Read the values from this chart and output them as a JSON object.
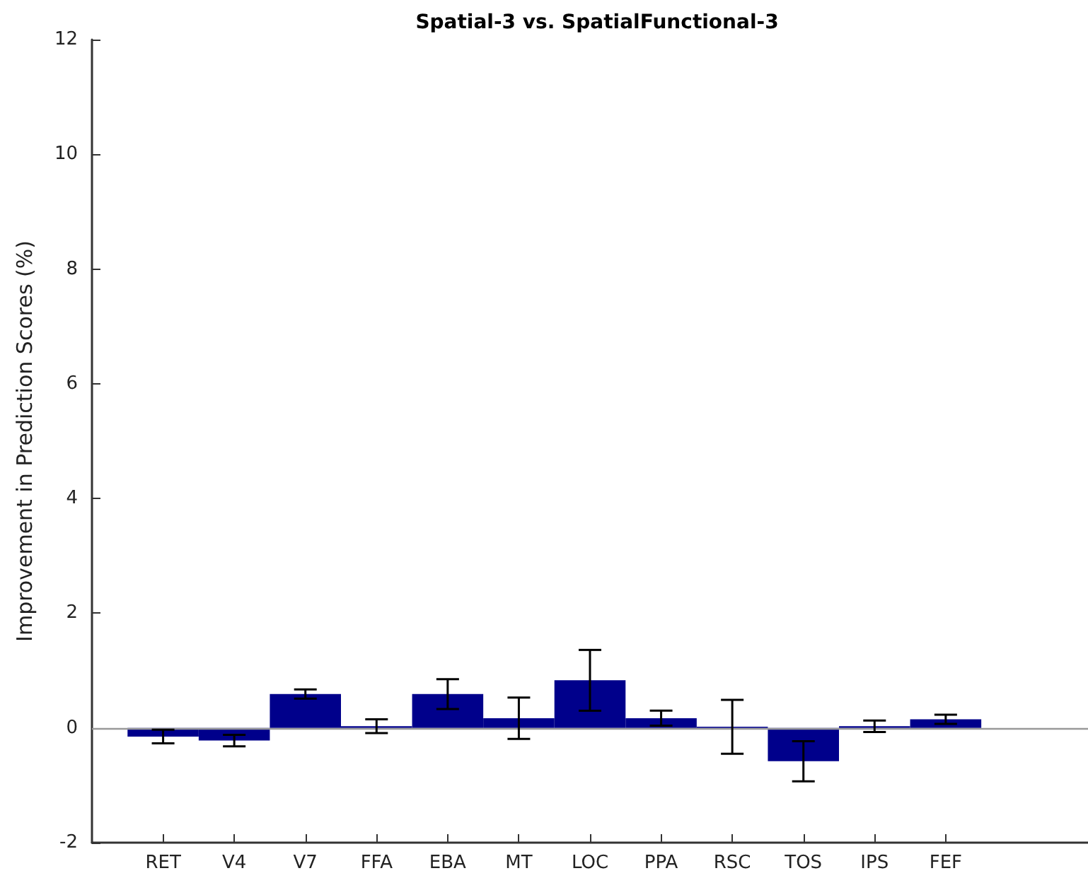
{
  "chart_data": {
    "type": "bar",
    "title": "Spatial-3 vs. SpatialFunctional-3",
    "ylabel": "Improvement in Prediction Scores (%)",
    "categories": [
      "RET",
      "V4",
      "V7",
      "FFA",
      "EBA",
      "MT",
      "LOC",
      "PPA",
      "RSC",
      "TOS",
      "IPS",
      "FEF"
    ],
    "values": [
      -0.15,
      -0.22,
      0.59,
      0.03,
      0.59,
      0.17,
      0.83,
      0.17,
      0.02,
      -0.58,
      0.03,
      0.15
    ],
    "errors": [
      0.12,
      0.1,
      0.08,
      0.12,
      0.26,
      0.36,
      0.53,
      0.13,
      0.47,
      0.35,
      0.1,
      0.08
    ],
    "color": "#00008b",
    "ylim": [
      -2,
      12
    ],
    "yticks": [
      -2,
      0,
      2,
      4,
      6,
      8,
      10,
      12
    ],
    "grid": false,
    "ref_lines": [
      {
        "axis": "y",
        "value": 0,
        "color": "#999999"
      }
    ]
  }
}
